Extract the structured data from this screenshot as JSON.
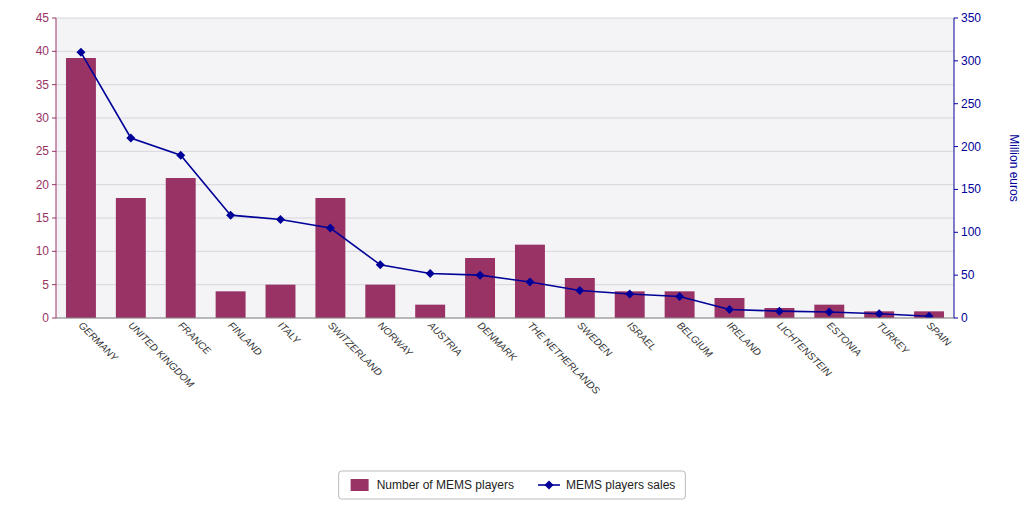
{
  "chart_data": {
    "type": "bar",
    "categories": [
      "GERMANY",
      "UNITED KINGDOM",
      "FRANCE",
      "FINLAND",
      "ITALY",
      "SWITZERLAND",
      "NORWAY",
      "AUSTRIA",
      "DENMARK",
      "THE NETHERLANDS",
      "SWEDEN",
      "ISRAEL",
      "BELGIUM",
      "IRELAND",
      "LICHTENSTEIN",
      "ESTONIA",
      "TURKEY",
      "SPAIN"
    ],
    "series": [
      {
        "name": "Number of MEMS players",
        "type": "bar",
        "color": "#993366",
        "values": [
          39,
          18,
          21,
          4,
          5,
          18,
          5,
          2,
          9,
          11,
          6,
          4,
          4,
          3,
          1.5,
          2,
          1,
          1
        ]
      },
      {
        "name": "MEMS players sales",
        "type": "line",
        "axis": "y2",
        "color": "#000099",
        "marker": "diamond",
        "values": [
          310,
          210,
          190,
          120,
          115,
          105,
          62,
          52,
          50,
          42,
          32,
          28,
          25,
          10,
          8,
          7,
          5,
          2
        ]
      }
    ],
    "ylim": [
      0,
      45
    ],
    "yticks": [
      0,
      5,
      10,
      15,
      20,
      25,
      30,
      35,
      40,
      45
    ],
    "y2lim": [
      0,
      350
    ],
    "y2ticks": [
      0,
      50,
      100,
      150,
      200,
      250,
      300,
      350
    ],
    "y2label": "Million euros",
    "grid": true,
    "legend": "bottom"
  }
}
